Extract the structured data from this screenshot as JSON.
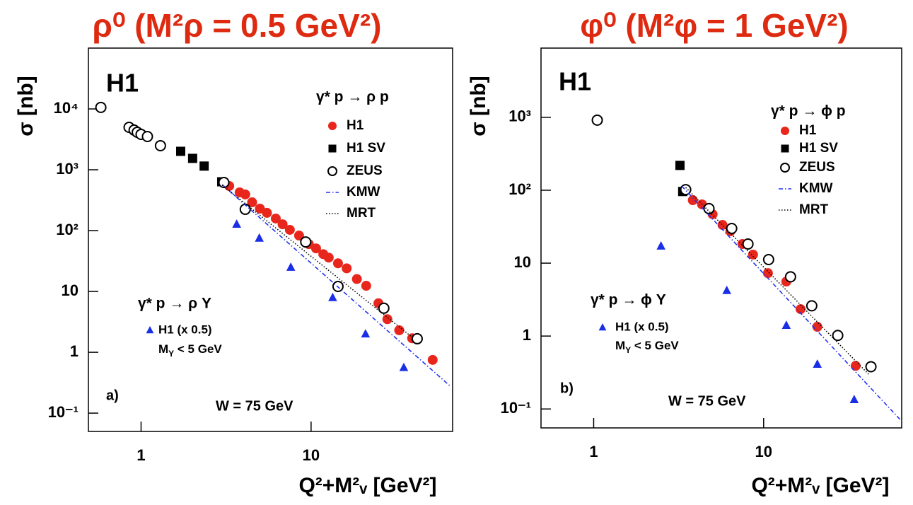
{
  "chart_data": [
    {
      "type": "scatter",
      "title": "ρ⁰ (M²ρ = 0.5 GeV²)",
      "x_label": "Q²+M²ᵥ [GeV²]",
      "y_label": "σ [nb]",
      "log_x": true,
      "log_y": true,
      "xlim": [
        0.49,
        68
      ],
      "ylim": [
        0.05,
        100000
      ],
      "xticks": [
        1,
        10
      ],
      "yticks": [
        {
          "value": 0.1,
          "label": "10⁻¹"
        },
        1,
        10,
        {
          "value": 100,
          "label": "10²"
        },
        {
          "value": 1000,
          "label": "10³"
        },
        {
          "value": 10000,
          "label": "10⁴"
        }
      ],
      "annotations": {
        "experiment": "H1",
        "panel": "a)",
        "energy": "W = 75 GeV",
        "legend_title": "γ* p → ρ p",
        "legend2_title": "γ* p → ρ Y",
        "legend2_note": {
          "main": "M",
          "sub": "Y",
          "rest": " < 5 GeV"
        }
      },
      "series": [
        {
          "name": "H1",
          "color": "#e8261c",
          "marker": "circle",
          "x": [
            3.3,
            3.8,
            4.1,
            4.5,
            5.0,
            5.5,
            6.2,
            6.8,
            7.5,
            8.5,
            9.7,
            10.7,
            11.8,
            12.7,
            14.4,
            16.2,
            18.6,
            21.1,
            24.9,
            28.1,
            33.0,
            39.3,
            51.9
          ],
          "values": [
            541,
            425,
            393,
            292,
            230,
            196,
            158,
            127,
            103,
            83,
            60,
            51,
            41,
            36,
            29,
            24,
            16,
            12.4,
            6.4,
            3.5,
            2.3,
            1.7,
            0.75
          ]
        },
        {
          "name": "H1 SV",
          "color": "#000000",
          "marker": "square",
          "x": [
            1.71,
            2.01,
            2.35,
            2.98
          ],
          "values": [
            2010,
            1540,
            1150,
            635
          ]
        },
        {
          "name": "ZEUS",
          "color": "#000000",
          "marker": "open-circle",
          "x": [
            0.58,
            0.85,
            0.91,
            0.95,
            1.0,
            1.09,
            1.3,
            3.07,
            4.1,
            9.3,
            14.4,
            26.8,
            42.1
          ],
          "values": [
            10600,
            4990,
            4490,
            4140,
            3820,
            3520,
            2490,
            618,
            224,
            65,
            12.1,
            5.3,
            1.67
          ]
        },
        {
          "name": "KMW",
          "color": "#2233ee",
          "marker": "dash-dot",
          "x": [
            3.0,
            66.6
          ],
          "values": [
            571,
            0.27
          ]
        },
        {
          "name": "MRT",
          "color": "#000000",
          "marker": "dotted",
          "x": [
            3.0,
            40
          ],
          "values": [
            560,
            1.7
          ]
        },
        {
          "name": "H1 (x 0.5)",
          "color": "#1a2ee8",
          "marker": "triangle",
          "x": [
            3.65,
            4.96,
            7.6,
            13.4,
            20.9,
            35.1
          ],
          "values": [
            127,
            75,
            24.9,
            7.9,
            2.0,
            0.56
          ]
        }
      ]
    },
    {
      "type": "scatter",
      "title": "φ⁰ (M²φ = 1 GeV²)",
      "x_label": "Q²+M²ᵥ [GeV²]",
      "y_label": "σ [nb]",
      "log_x": true,
      "log_y": true,
      "xlim": [
        0.49,
        64.9
      ],
      "ylim": [
        0.055,
        8900
      ],
      "xticks": [
        1,
        10
      ],
      "yticks": [
        {
          "value": 0.1,
          "label": "10⁻¹"
        },
        1,
        10,
        {
          "value": 100,
          "label": "10²"
        },
        {
          "value": 1000,
          "label": "10³"
        }
      ],
      "annotations": {
        "experiment": "H1",
        "panel": "b)",
        "energy": "W = 75 GeV",
        "legend_title": "γ* p → ϕ p",
        "legend2_title": "γ* p → ϕ Y",
        "legend2_note": {
          "main": "M",
          "sub": "Y",
          "rest": " < 5 GeV"
        }
      },
      "series": [
        {
          "name": "H1",
          "color": "#e8261c",
          "marker": "circle",
          "x": [
            3.83,
            4.34,
            5.01,
            5.73,
            6.37,
            7.5,
            8.66,
            10.6,
            13.6,
            16.5,
            20.7,
            34.8
          ],
          "values": [
            73,
            64,
            46.8,
            33.4,
            27.3,
            18.3,
            13.1,
            7.3,
            5.6,
            2.34,
            1.34,
            0.39
          ]
        },
        {
          "name": "H1 SV",
          "color": "#000000",
          "marker": "square",
          "x": [
            3.22,
            3.34
          ],
          "values": [
            219,
            96
          ]
        },
        {
          "name": "ZEUS",
          "color": "#000000",
          "marker": "open-circle",
          "x": [
            1.05,
            3.48,
            4.77,
            6.49,
            8.09,
            10.7,
            14.4,
            19.2,
            27.3,
            42.8
          ],
          "values": [
            914,
            102,
            56,
            29.9,
            18.3,
            11.2,
            6.5,
            2.6,
            1.02,
            0.38
          ]
        },
        {
          "name": "KMW",
          "color": "#2233ee",
          "marker": "dash-dot",
          "x": [
            3.3,
            64.9
          ],
          "values": [
            114,
            0.068
          ]
        },
        {
          "name": "MRT",
          "color": "#000000",
          "marker": "dotted",
          "x": [
            3.48,
            42
          ],
          "values": [
            109,
            0.29
          ]
        },
        {
          "name": "H1 (x 0.5)",
          "color": "#1a2ee8",
          "marker": "triangle",
          "x": [
            2.49,
            6.07,
            13.6,
            20.7,
            34.1
          ],
          "values": [
            17.1,
            4.2,
            1.4,
            0.41,
            0.134
          ]
        }
      ]
    }
  ]
}
